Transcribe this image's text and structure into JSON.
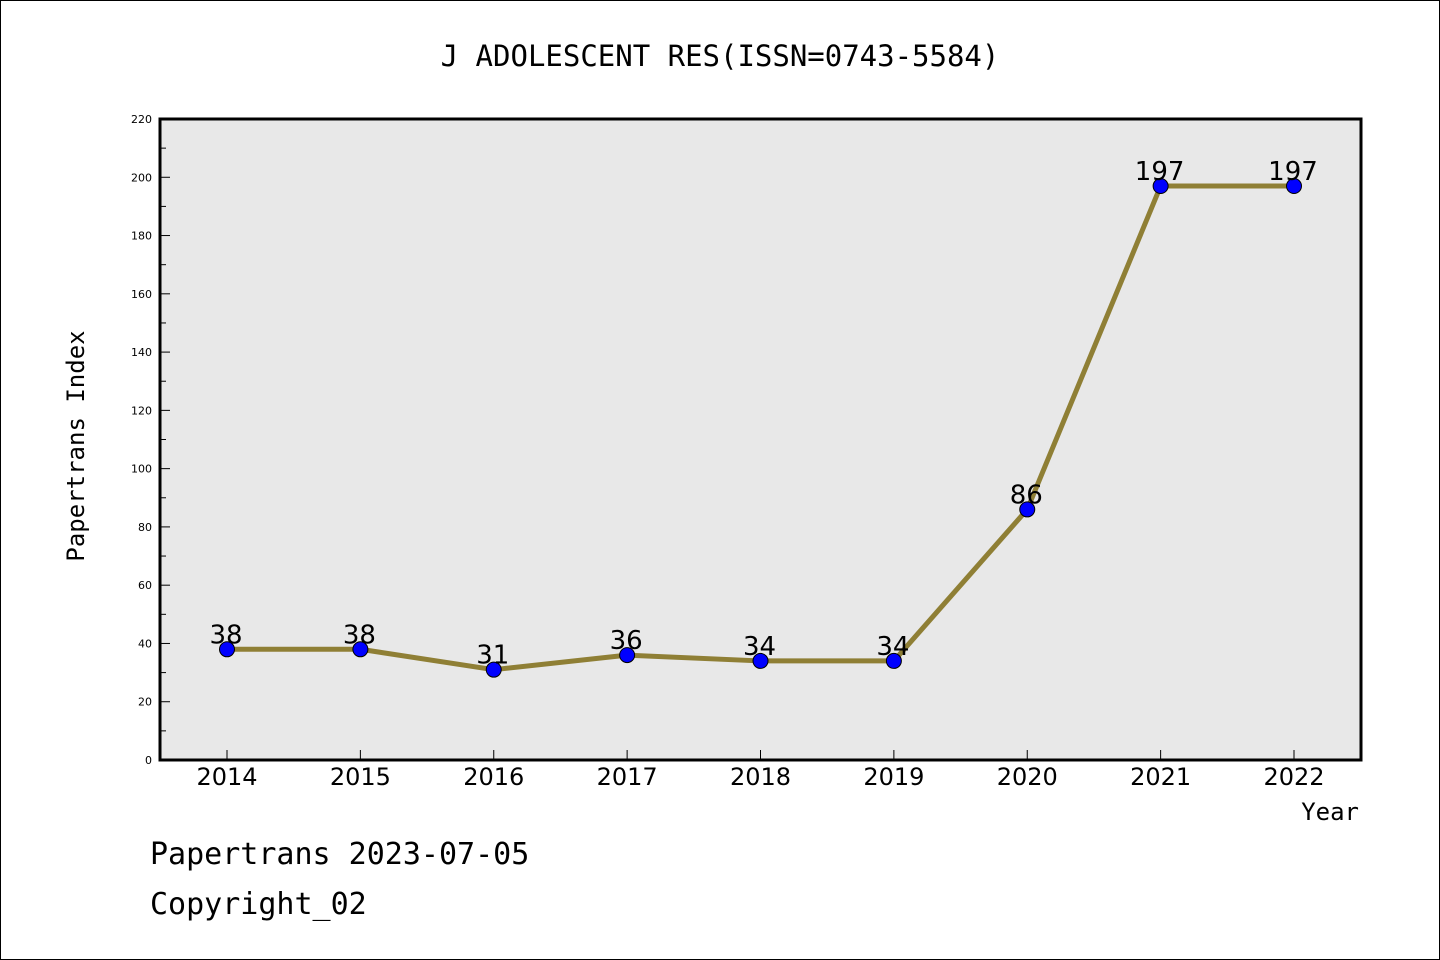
{
  "chart_data": {
    "type": "line",
    "title": "J ADOLESCENT RES(ISSN=0743-5584)",
    "xlabel": "Year",
    "ylabel": "Papertrans Index",
    "categories": [
      "2014",
      "2015",
      "2016",
      "2017",
      "2018",
      "2019",
      "2020",
      "2021",
      "2022"
    ],
    "series": [
      {
        "values": [
          38,
          38,
          31,
          36,
          34,
          34,
          86,
          197,
          197
        ]
      }
    ],
    "ylim": [
      0,
      220
    ],
    "yticks": [
      "0",
      "20",
      "40",
      "60",
      "80",
      "100",
      "120",
      "140",
      "160",
      "180",
      "200",
      "220"
    ],
    "data_labels": [
      "38",
      "38",
      "31",
      "36",
      "34",
      "34",
      "86",
      "197",
      "197"
    ],
    "grid": false,
    "line_color": "#8f7f35",
    "marker_color": "#0000ff",
    "plot_background": "#e8e8e8"
  },
  "footer": {
    "source": "Papertrans 2023-07-05",
    "copyright": "Copyright_02"
  }
}
